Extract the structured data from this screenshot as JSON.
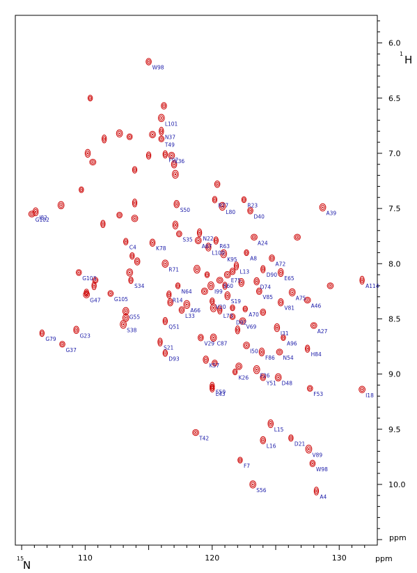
{
  "chart_data": {
    "type": "scatter",
    "xlabel": "N",
    "xlabel_isotope": "15",
    "ylabel": "H",
    "ylabel_isotope": "1",
    "unit": "ppm",
    "xlim": [
      104.5,
      133.0
    ],
    "ylim": [
      5.75,
      10.55
    ],
    "x_reversed": false,
    "y_reversed": true,
    "x_ticks": [
      110,
      120,
      130
    ],
    "y_ticks": [
      6.0,
      6.5,
      7.0,
      7.5,
      8.0,
      8.5,
      9.0,
      9.5,
      10.0
    ],
    "peak_color": "#cc0000",
    "label_color": "#1a1aa8",
    "labeled_peaks": [
      {
        "label": "W98",
        "x": 115.0,
        "y": 6.17
      },
      {
        "label": "L101",
        "x": 116.0,
        "y": 6.68
      },
      {
        "label": "N37",
        "x": 116.0,
        "y": 6.8
      },
      {
        "label": "T49",
        "x": 116.0,
        "y": 6.87
      },
      {
        "label": "L36",
        "x": 116.8,
        "y": 7.02
      },
      {
        "label": "F97",
        "x": 116.3,
        "y": 7.01
      },
      {
        "label": "I82",
        "x": 106.1,
        "y": 7.53
      },
      {
        "label": "G102",
        "x": 105.8,
        "y": 7.55
      },
      {
        "label": "R77",
        "x": 120.2,
        "y": 7.42
      },
      {
        "label": "S50",
        "x": 117.2,
        "y": 7.46
      },
      {
        "label": "L80",
        "x": 120.8,
        "y": 7.48
      },
      {
        "label": "R23",
        "x": 122.5,
        "y": 7.42
      },
      {
        "label": "D40",
        "x": 123.0,
        "y": 7.52
      },
      {
        "label": "A39",
        "x": 128.7,
        "y": 7.49
      },
      {
        "label": "N22",
        "x": 119.0,
        "y": 7.72
      },
      {
        "label": "S35",
        "x": 117.4,
        "y": 7.73
      },
      {
        "label": "A67",
        "x": 118.9,
        "y": 7.79
      },
      {
        "label": "R63",
        "x": 120.3,
        "y": 7.79
      },
      {
        "label": "L100",
        "x": 119.7,
        "y": 7.85
      },
      {
        "label": "A24",
        "x": 123.3,
        "y": 7.76
      },
      {
        "label": "C4",
        "x": 113.2,
        "y": 7.8
      },
      {
        "label": "K78",
        "x": 115.3,
        "y": 7.81
      },
      {
        "label": "K95",
        "x": 120.9,
        "y": 7.91
      },
      {
        "label": "A8",
        "x": 122.7,
        "y": 7.9
      },
      {
        "label": "A72",
        "x": 124.7,
        "y": 7.95
      },
      {
        "label": "R71",
        "x": 116.3,
        "y": 8.0
      },
      {
        "label": "L13",
        "x": 121.9,
        "y": 8.02
      },
      {
        "label": "G103",
        "x": 109.5,
        "y": 8.08
      },
      {
        "label": "E75",
        "x": 121.2,
        "y": 8.1
      },
      {
        "label": "D90",
        "x": 124.0,
        "y": 8.05
      },
      {
        "label": "E65",
        "x": 125.4,
        "y": 8.08
      },
      {
        "label": "S60",
        "x": 120.6,
        "y": 8.15
      },
      {
        "label": "S34",
        "x": 113.6,
        "y": 8.15
      },
      {
        "label": "D74",
        "x": 123.5,
        "y": 8.16
      },
      {
        "label": "I99",
        "x": 119.9,
        "y": 8.2
      },
      {
        "label": "N64",
        "x": 117.3,
        "y": 8.2
      },
      {
        "label": "V85",
        "x": 123.7,
        "y": 8.25
      },
      {
        "label": "A75",
        "x": 126.3,
        "y": 8.26
      },
      {
        "label": "A114",
        "x": 131.8,
        "y": 8.15
      },
      {
        "label": "G105",
        "x": 112.0,
        "y": 8.27
      },
      {
        "label": "G47",
        "x": 110.1,
        "y": 8.28
      },
      {
        "label": "R14",
        "x": 116.6,
        "y": 8.28
      },
      {
        "label": "S19",
        "x": 121.2,
        "y": 8.29
      },
      {
        "label": "A46",
        "x": 127.5,
        "y": 8.33
      },
      {
        "label": "V20",
        "x": 120.0,
        "y": 8.34
      },
      {
        "label": "V81",
        "x": 125.4,
        "y": 8.35
      },
      {
        "label": "A66",
        "x": 118.0,
        "y": 8.37
      },
      {
        "label": "A70",
        "x": 122.6,
        "y": 8.41
      },
      {
        "label": "L33",
        "x": 117.6,
        "y": 8.42
      },
      {
        "label": "G55",
        "x": 113.2,
        "y": 8.43
      },
      {
        "label": "L73",
        "x": 120.6,
        "y": 8.42
      },
      {
        "label": "D92",
        "x": 121.6,
        "y": 8.48
      },
      {
        "label": "V69",
        "x": 122.4,
        "y": 8.52
      },
      {
        "label": "Q51",
        "x": 116.3,
        "y": 8.52
      },
      {
        "label": "I31",
        "x": 125.1,
        "y": 8.58
      },
      {
        "label": "A27",
        "x": 128.0,
        "y": 8.56
      },
      {
        "label": "G79",
        "x": 106.6,
        "y": 8.63
      },
      {
        "label": "G23",
        "x": 109.3,
        "y": 8.6
      },
      {
        "label": "S38",
        "x": 113.0,
        "y": 8.55
      },
      {
        "label": "A96",
        "x": 125.6,
        "y": 8.67
      },
      {
        "label": "V29",
        "x": 119.1,
        "y": 8.67
      },
      {
        "label": "C87",
        "x": 120.1,
        "y": 8.67
      },
      {
        "label": "S21",
        "x": 115.9,
        "y": 8.71
      },
      {
        "label": "G37",
        "x": 108.2,
        "y": 8.73
      },
      {
        "label": "I50",
        "x": 122.7,
        "y": 8.74
      },
      {
        "label": "H84",
        "x": 127.5,
        "y": 8.77
      },
      {
        "label": "F86",
        "x": 123.9,
        "y": 8.8
      },
      {
        "label": "N54",
        "x": 125.3,
        "y": 8.8
      },
      {
        "label": "D93",
        "x": 116.3,
        "y": 8.81
      },
      {
        "label": "K57",
        "x": 119.5,
        "y": 8.87
      },
      {
        "label": "F26",
        "x": 123.5,
        "y": 8.96
      },
      {
        "label": "K26",
        "x": 121.8,
        "y": 8.98
      },
      {
        "label": "Y51",
        "x": 124.0,
        "y": 9.03
      },
      {
        "label": "D48",
        "x": 125.2,
        "y": 9.03
      },
      {
        "label": "S59",
        "x": 120.0,
        "y": 9.11
      },
      {
        "label": "F53",
        "x": 127.7,
        "y": 9.13
      },
      {
        "label": "I18",
        "x": 131.8,
        "y": 9.14
      },
      {
        "label": "L43",
        "x": 120.0,
        "y": 9.13
      },
      {
        "label": "L15",
        "x": 124.6,
        "y": 9.45
      },
      {
        "label": "T42",
        "x": 118.7,
        "y": 9.53
      },
      {
        "label": "D21",
        "x": 126.2,
        "y": 9.58
      },
      {
        "label": "L16",
        "x": 124.0,
        "y": 9.6
      },
      {
        "label": "V89",
        "x": 127.6,
        "y": 9.68
      },
      {
        "label": "F7",
        "x": 122.2,
        "y": 9.78
      },
      {
        "label": "W98",
        "x": 127.9,
        "y": 9.81
      },
      {
        "label": "S56",
        "x": 123.2,
        "y": 10.0
      },
      {
        "label": "A4",
        "x": 128.2,
        "y": 10.06
      }
    ],
    "unlabeled_peaks": [
      {
        "x": 110.4,
        "y": 6.5
      },
      {
        "x": 116.2,
        "y": 6.57
      },
      {
        "x": 112.7,
        "y": 6.82
      },
      {
        "x": 111.5,
        "y": 6.87
      },
      {
        "x": 113.5,
        "y": 6.85
      },
      {
        "x": 115.3,
        "y": 6.83
      },
      {
        "x": 115.0,
        "y": 7.02
      },
      {
        "x": 110.2,
        "y": 7.0
      },
      {
        "x": 110.6,
        "y": 7.08
      },
      {
        "x": 113.9,
        "y": 7.15
      },
      {
        "x": 117.0,
        "y": 7.1
      },
      {
        "x": 117.1,
        "y": 7.19
      },
      {
        "x": 109.7,
        "y": 7.33
      },
      {
        "x": 120.4,
        "y": 7.28
      },
      {
        "x": 108.1,
        "y": 7.47
      },
      {
        "x": 113.9,
        "y": 7.45
      },
      {
        "x": 112.7,
        "y": 7.56
      },
      {
        "x": 113.9,
        "y": 7.59
      },
      {
        "x": 111.4,
        "y": 7.64
      },
      {
        "x": 117.1,
        "y": 7.65
      },
      {
        "x": 126.7,
        "y": 7.76
      },
      {
        "x": 113.7,
        "y": 7.93
      },
      {
        "x": 114.1,
        "y": 7.98
      },
      {
        "x": 118.8,
        "y": 8.05
      },
      {
        "x": 119.6,
        "y": 8.1
      },
      {
        "x": 121.6,
        "y": 8.07
      },
      {
        "x": 113.5,
        "y": 8.08
      },
      {
        "x": 110.7,
        "y": 8.2
      },
      {
        "x": 110.8,
        "y": 8.15
      },
      {
        "x": 119.4,
        "y": 8.25
      },
      {
        "x": 121.0,
        "y": 8.2
      },
      {
        "x": 122.3,
        "y": 8.17
      },
      {
        "x": 129.3,
        "y": 8.2
      },
      {
        "x": 110.1,
        "y": 8.26
      },
      {
        "x": 116.7,
        "y": 8.35
      },
      {
        "x": 120.1,
        "y": 8.4
      },
      {
        "x": 121.6,
        "y": 8.4
      },
      {
        "x": 124.0,
        "y": 8.44
      },
      {
        "x": 113.2,
        "y": 8.49
      },
      {
        "x": 122.0,
        "y": 8.6
      },
      {
        "x": 120.2,
        "y": 8.9
      },
      {
        "x": 122.1,
        "y": 8.93
      }
    ]
  }
}
